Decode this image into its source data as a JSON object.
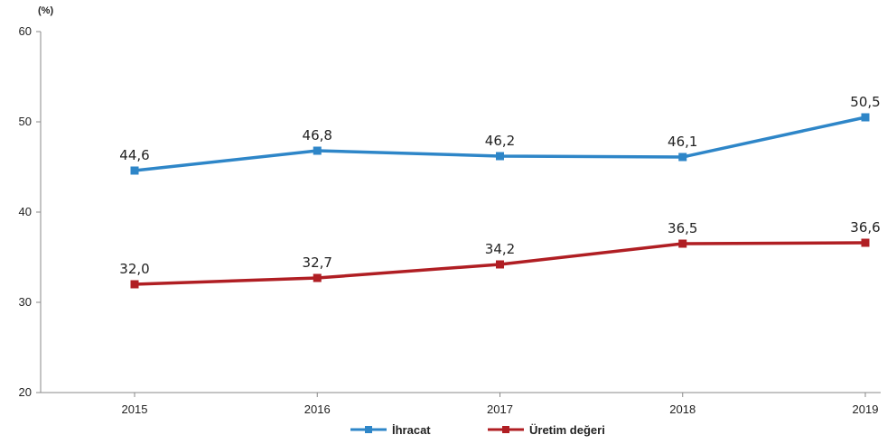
{
  "chart_data": {
    "type": "line",
    "title": "",
    "unit_label": "(%)",
    "xlabel": "",
    "ylabel": "",
    "categories": [
      "2015",
      "2016",
      "2017",
      "2018",
      "2019"
    ],
    "ylim": [
      20,
      60
    ],
    "yticks": [
      20,
      30,
      40,
      50,
      60
    ],
    "grid": false,
    "legend_position": "bottom",
    "series": [
      {
        "name": "İhracat",
        "color": "#2E86C8",
        "values": [
          44.6,
          46.8,
          46.2,
          46.1,
          50.5
        ],
        "labels": [
          "44,6",
          "46,8",
          "46,2",
          "46,1",
          "50,5"
        ]
      },
      {
        "name": "Üretim değeri",
        "color": "#B01E23",
        "values": [
          32.0,
          32.7,
          34.2,
          36.5,
          36.6
        ],
        "labels": [
          "32,0",
          "32,7",
          "34,2",
          "36,5",
          "36,6"
        ]
      }
    ]
  }
}
